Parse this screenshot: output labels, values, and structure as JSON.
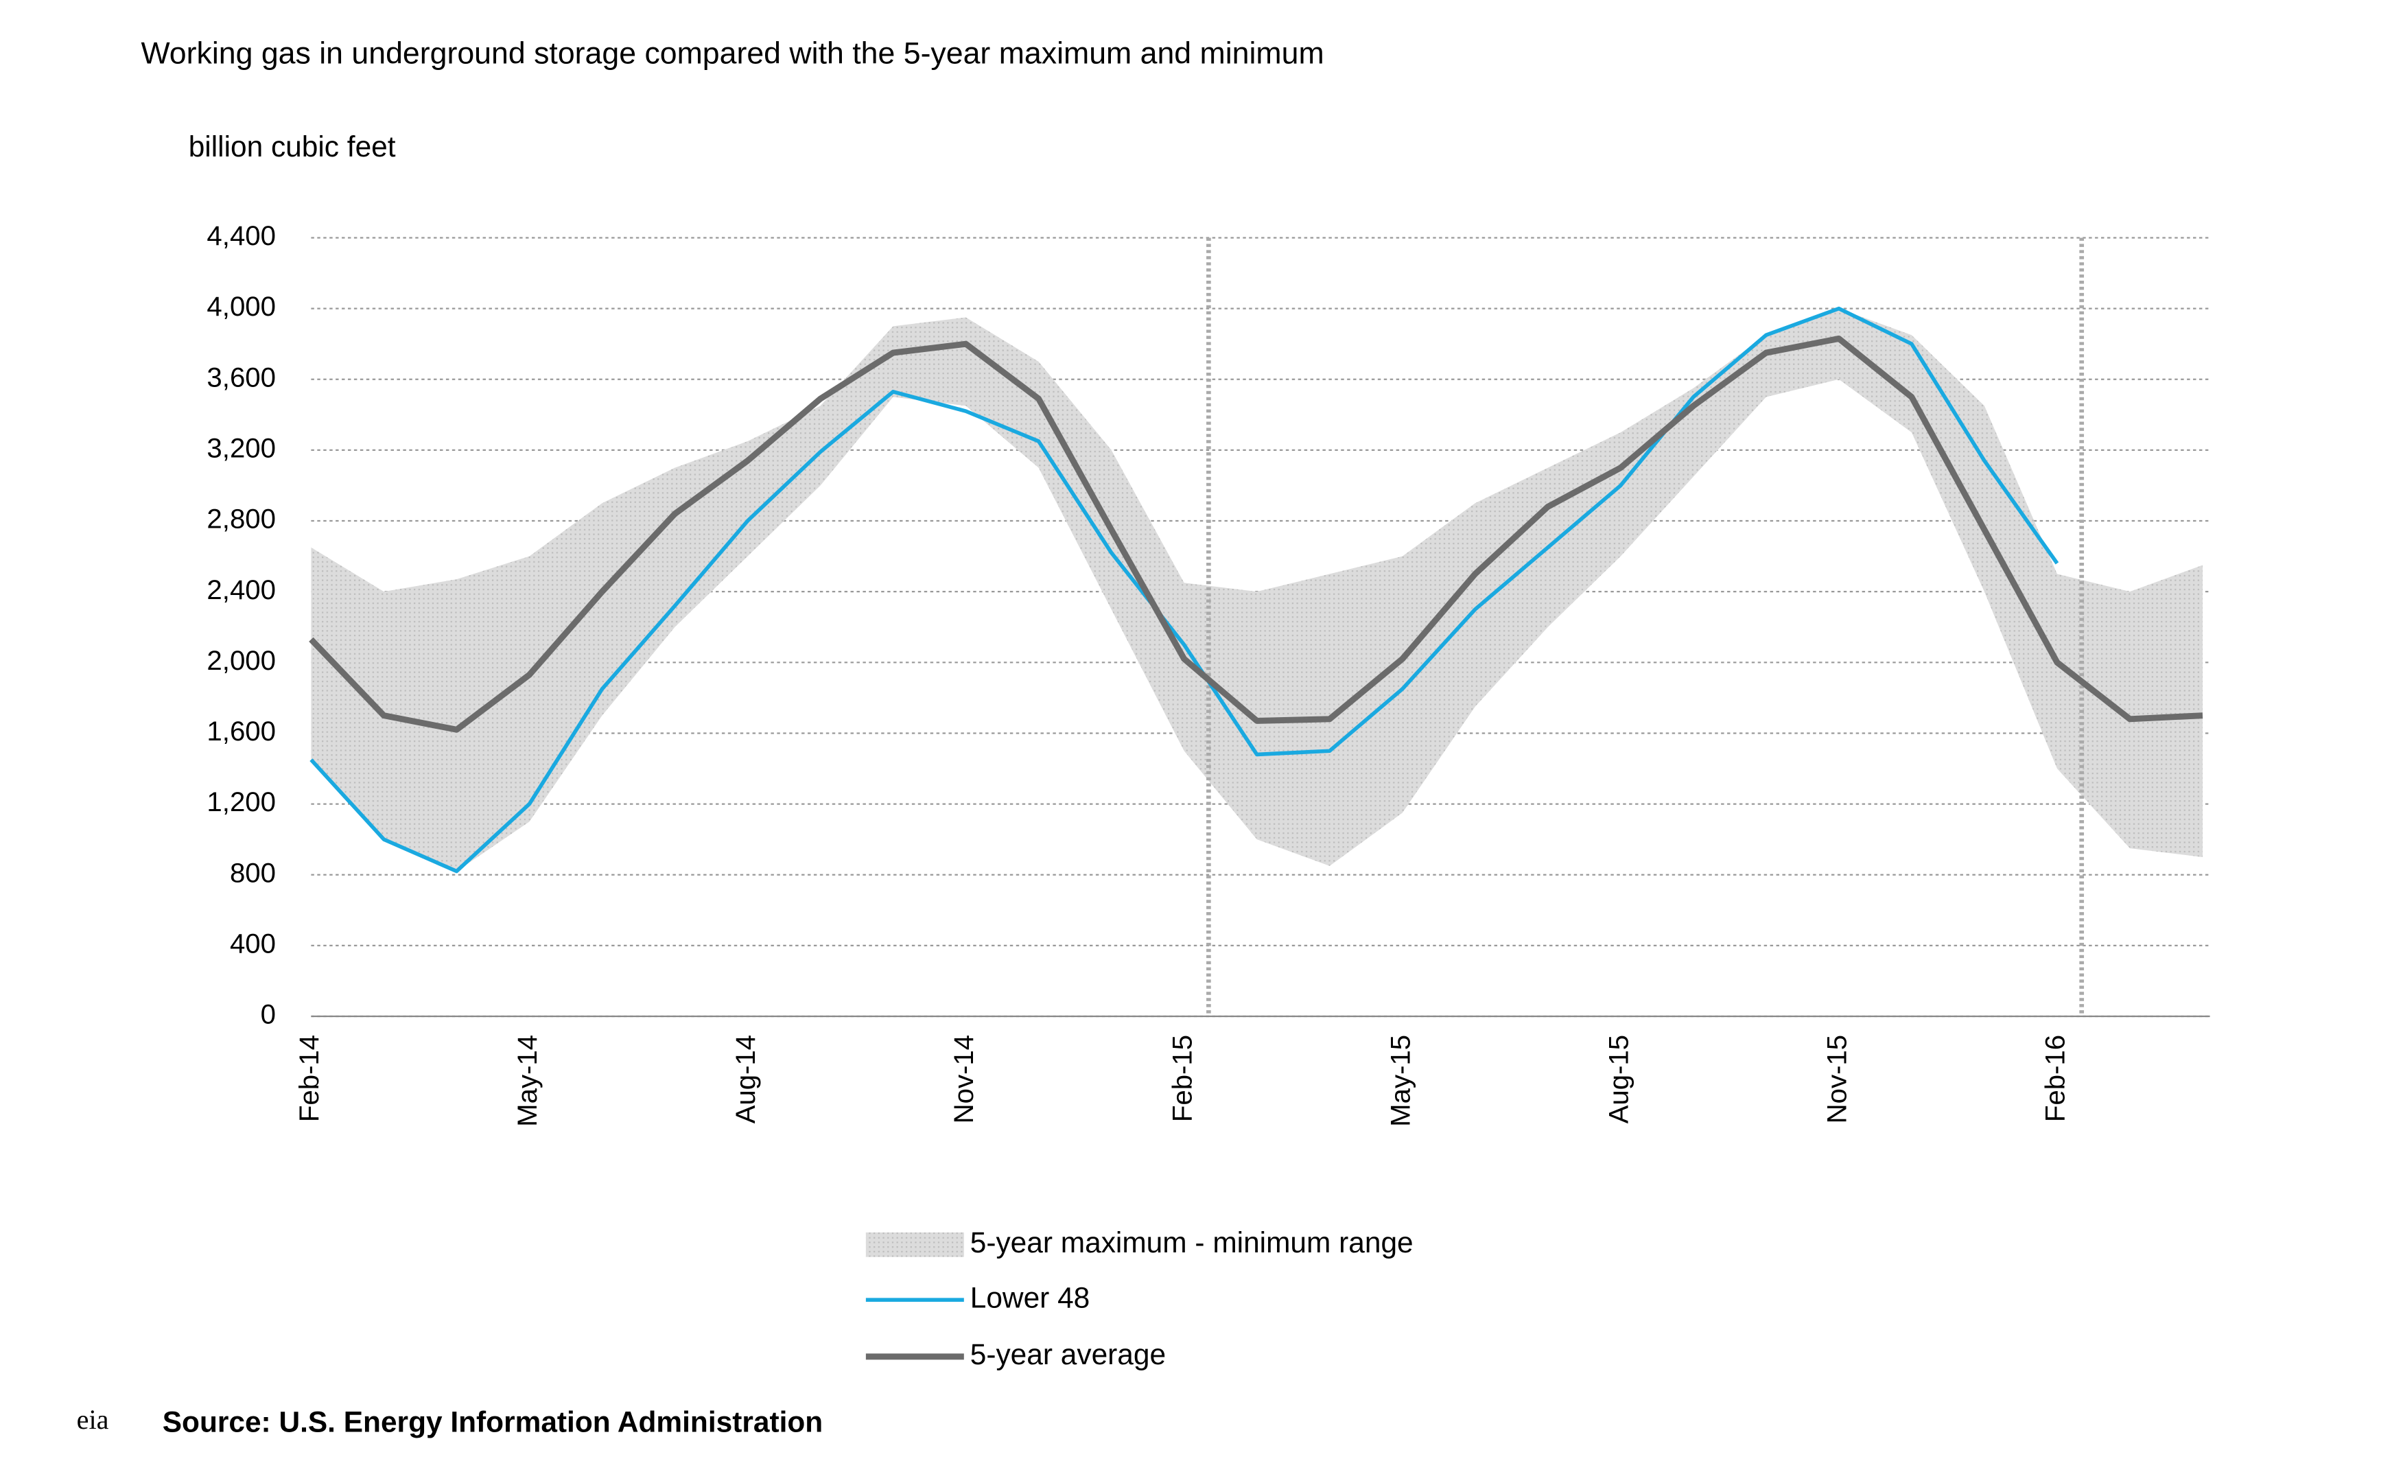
{
  "chart_data": {
    "type": "line",
    "title": "Working gas in underground storage compared with the 5-year maximum and minimum",
    "y_label": "billion cubic feet",
    "source": "Source:  U.S. Energy Information Administration",
    "logo": "eia",
    "categories": [
      "Feb-14",
      null,
      null,
      "May-14",
      null,
      null,
      "Aug-14",
      null,
      null,
      "Nov-14",
      null,
      null,
      "Feb-15",
      null,
      null,
      "May-15",
      null,
      null,
      "Aug-15",
      null,
      null,
      "Nov-15",
      null,
      null,
      "Feb-16",
      null,
      null
    ],
    "range": {
      "name": "5-year maximum - minimum range",
      "color": "#d4d4d4",
      "max": [
        2650,
        2400,
        2470,
        2600,
        2900,
        3100,
        3250,
        3450,
        3900,
        3950,
        3700,
        3200,
        2450,
        2400,
        2500,
        2600,
        2900,
        3100,
        3300,
        3550,
        3850,
        4000,
        3850,
        3450,
        2500,
        2400,
        2550
      ],
      "min": [
        1450,
        1000,
        820,
        1100,
        1700,
        2200,
        2600,
        3000,
        3500,
        3450,
        3100,
        2300,
        1500,
        1000,
        850,
        1150,
        1750,
        2200,
        2600,
        3050,
        3500,
        3600,
        3300,
        2400,
        1400,
        950,
        900
      ]
    },
    "series": [
      {
        "name": "Lower 48",
        "color": "#1aa9e0",
        "width": 2.5,
        "values": [
          1450,
          1000,
          820,
          1200,
          1850,
          2320,
          2800,
          3190,
          3530,
          3420,
          3250,
          2620,
          2100,
          1480,
          1500,
          1850,
          2300,
          2650,
          3000,
          3500,
          3850,
          4000,
          3800,
          3140,
          2560,
          null,
          null
        ]
      },
      {
        "name": "5-year average",
        "color": "#6b6b6b",
        "width": 4,
        "values": [
          2130,
          1700,
          1620,
          1930,
          2400,
          2840,
          3140,
          3490,
          3750,
          3800,
          3490,
          2750,
          2020,
          1670,
          1680,
          2020,
          2500,
          2880,
          3100,
          3450,
          3750,
          3830,
          3500,
          2750,
          2000,
          1680,
          1700
        ]
      }
    ],
    "ylim": [
      0,
      4400
    ],
    "yticks": [
      0,
      400,
      800,
      {
        "value": 1200,
        "label": "1,200"
      },
      {
        "value": 1600,
        "label": "1,600"
      },
      {
        "value": 2000,
        "label": "2,000"
      },
      {
        "value": 2400,
        "label": "2,400"
      },
      {
        "value": 2800,
        "label": "2,800"
      },
      {
        "value": 3200,
        "label": "3,200"
      },
      {
        "value": 3600,
        "label": "3,600"
      },
      {
        "value": 4000,
        "label": "4,000"
      },
      {
        "value": 4400,
        "label": "4,400"
      }
    ],
    "grid": true
  }
}
